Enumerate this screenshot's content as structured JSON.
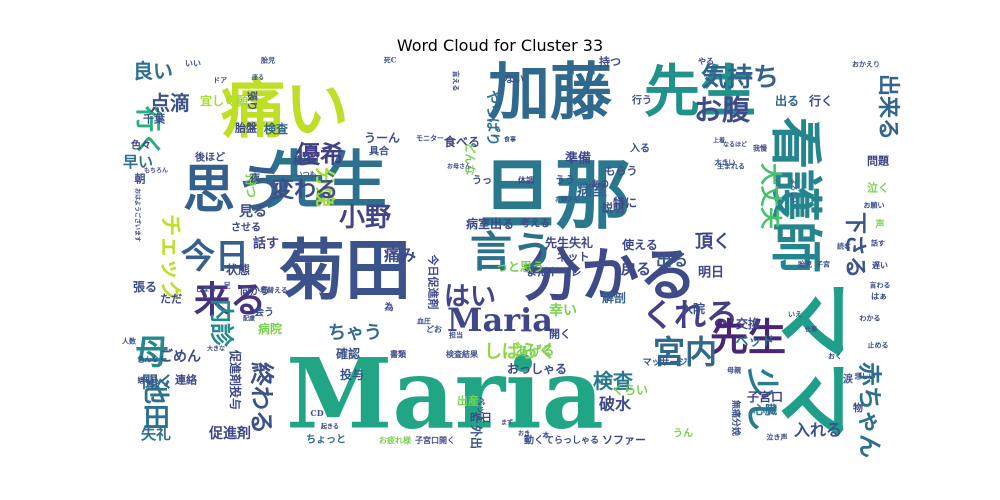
{
  "chart_data": {
    "type": "wordcloud",
    "title": "Word Cloud for Cluster 33",
    "words": [
      {
        "text": "Maria",
        "weight": 1.0,
        "color": "#21a685"
      },
      {
        "text": "ママ",
        "weight": 0.93,
        "color": "#1f9e89"
      },
      {
        "text": "旦那",
        "weight": 0.8,
        "color": "#2a788e"
      },
      {
        "text": "菊田",
        "weight": 0.75,
        "color": "#3b528b"
      },
      {
        "text": "先生",
        "weight": 0.72,
        "color": "#2c728e"
      },
      {
        "text": "加藤",
        "weight": 0.65,
        "color": "#30698e"
      },
      {
        "text": "先生",
        "weight": 0.62,
        "color": "#21918c"
      },
      {
        "text": "痛い",
        "weight": 0.6,
        "color": "#bddf26"
      },
      {
        "text": "分かる",
        "weight": 0.58,
        "color": "#3e4a89"
      },
      {
        "text": "思う",
        "weight": 0.5,
        "color": "#35608d"
      },
      {
        "text": "看護師",
        "weight": 0.48,
        "color": "#25858e"
      },
      {
        "text": "言う",
        "weight": 0.4,
        "color": "#2d708e"
      },
      {
        "text": "くれる",
        "weight": 0.32,
        "color": "#433e85"
      },
      {
        "text": "Maria",
        "weight": 0.3,
        "color": "#3f4788"
      },
      {
        "text": "先生",
        "weight": 0.3,
        "color": "#482576"
      },
      {
        "text": "宮内",
        "weight": 0.28,
        "color": "#31688e"
      },
      {
        "text": "来る",
        "weight": 0.28,
        "color": "#46327e"
      },
      {
        "text": "今日",
        "weight": 0.26,
        "color": "#35608d"
      },
      {
        "text": "少し",
        "weight": 0.26,
        "color": "#287c8e"
      },
      {
        "text": "気持ち",
        "weight": 0.22,
        "color": "#33638d"
      },
      {
        "text": "お腹",
        "weight": 0.22,
        "color": "#3d4d8a"
      },
      {
        "text": "分娩",
        "weight": 0.22,
        "color": "#a8db34"
      },
      {
        "text": "優希",
        "weight": 0.2,
        "color": "#424086"
      },
      {
        "text": "変わる",
        "weight": 0.2,
        "color": "#3e4c8a"
      },
      {
        "text": "母",
        "weight": 0.26,
        "color": "#23898e"
      },
      {
        "text": "内診",
        "weight": 0.22,
        "color": "#23898e"
      },
      {
        "text": "終わる",
        "weight": 0.22,
        "color": "#3b518b"
      },
      {
        "text": "池田",
        "weight": 0.22,
        "color": "#2c728e"
      },
      {
        "text": "大丈夫",
        "weight": 0.2,
        "color": "#48c16e"
      },
      {
        "text": "赤ちゃん",
        "weight": 0.2,
        "color": "#2d708e"
      },
      {
        "text": "はい",
        "weight": 0.18,
        "color": "#404688"
      },
      {
        "text": "小野",
        "weight": 0.18,
        "color": "#414487"
      },
      {
        "text": "チェック",
        "weight": 0.2,
        "color": "#bddf26"
      },
      {
        "text": "検査",
        "weight": 0.18,
        "color": "#2a788e"
      },
      {
        "text": "下さる",
        "weight": 0.18,
        "color": "#3b528b"
      },
      {
        "text": "出来る",
        "weight": 0.16,
        "color": "#32658e"
      },
      {
        "text": "行く",
        "weight": 0.16,
        "color": "#29af7f"
      },
      {
        "text": "しばらく",
        "weight": 0.14,
        "color": "#8fd744"
      },
      {
        "text": "ちゃう",
        "weight": 0.14,
        "color": "#31688e"
      },
      {
        "text": "痛み",
        "weight": 0.13,
        "color": "#3e4989"
      },
      {
        "text": "良い",
        "weight": 0.13,
        "color": "#2e6f8e"
      },
      {
        "text": "点滴",
        "weight": 0.13,
        "color": "#3b528b"
      },
      {
        "text": "頂く",
        "weight": 0.13,
        "color": "#3f4788"
      },
      {
        "text": "戻る",
        "weight": 0.12,
        "color": "#3e4989"
      },
      {
        "text": "病室",
        "weight": 0.11,
        "color": "#355f8d"
      },
      {
        "text": "準備",
        "weight": 0.1,
        "color": "#404688"
      },
      {
        "text": "出る",
        "weight": 0.1,
        "color": "#38598c"
      },
      {
        "text": "見る",
        "weight": 0.1,
        "color": "#3c4f8a"
      },
      {
        "text": "話す",
        "weight": 0.1,
        "color": "#3f4889"
      },
      {
        "text": "聞く",
        "weight": 0.1,
        "color": "#33638d"
      },
      {
        "text": "ごめん",
        "weight": 0.09,
        "color": "#3e4c8a"
      },
      {
        "text": "早い",
        "weight": 0.09,
        "color": "#2d708e"
      },
      {
        "text": "あげる",
        "weight": 0.09,
        "color": "#7ad151"
      },
      {
        "text": "確認",
        "weight": 0.08,
        "color": "#3b528b"
      },
      {
        "text": "連絡",
        "weight": 0.08,
        "color": "#3e4989"
      },
      {
        "text": "失礼",
        "weight": 0.09,
        "color": "#2c728e"
      },
      {
        "text": "促進剤",
        "weight": 0.08,
        "color": "#3f4788"
      },
      {
        "text": "病院",
        "weight": 0.08,
        "color": "#7ad151"
      },
      {
        "text": "おっしゃる",
        "weight": 0.08,
        "color": "#3e4989"
      },
      {
        "text": "入れる",
        "weight": 0.09,
        "color": "#3b528b"
      },
      {
        "text": "破水",
        "weight": 0.09,
        "color": "#3e4989"
      },
      {
        "text": "くらい",
        "weight": 0.08,
        "color": "#7ad151"
      },
      {
        "text": "子宮口",
        "weight": 0.08,
        "color": "#414487"
      },
      {
        "text": "ベッド",
        "weight": 0.08,
        "color": "#2c728e"
      },
      {
        "text": "交換",
        "weight": 0.08,
        "color": "#3e4989"
      },
      {
        "text": "入院",
        "weight": 0.08,
        "color": "#3b528b"
      },
      {
        "text": "解剖",
        "weight": 0.08,
        "color": "#33638d"
      },
      {
        "text": "明日",
        "weight": 0.08,
        "color": "#3f4788"
      },
      {
        "text": "心臓",
        "weight": 0.07,
        "color": "#2c728e"
      },
      {
        "text": "ソファー",
        "weight": 0.06,
        "color": "#3e4989"
      },
      {
        "text": "ちょっと",
        "weight": 0.06,
        "color": "#31688e"
      },
      {
        "text": "状態",
        "weight": 0.07,
        "color": "#3e4989"
      },
      {
        "text": "具合",
        "weight": 0.07,
        "color": "#3b528b"
      },
      {
        "text": "食べる",
        "weight": 0.07,
        "color": "#404688"
      },
      {
        "text": "持つ",
        "weight": 0.07,
        "color": "#3e4989"
      },
      {
        "text": "出る",
        "weight": 0.07,
        "color": "#33638d"
      },
      {
        "text": "行く",
        "weight": 0.07,
        "color": "#3e4989"
      },
      {
        "text": "うーん",
        "weight": 0.07,
        "color": "#3b528b"
      },
      {
        "text": "胎盤",
        "weight": 0.06,
        "color": "#3e4989"
      },
      {
        "text": "検査",
        "weight": 0.06,
        "color": "#33638d"
      },
      {
        "text": "千葉",
        "weight": 0.06,
        "color": "#3b528b"
      },
      {
        "text": "宜しく願う",
        "weight": 0.06,
        "color": "#a8db34"
      },
      {
        "text": "後ほど",
        "weight": 0.06,
        "color": "#3e4989"
      },
      {
        "text": "色々",
        "weight": 0.05,
        "color": "#3f4788"
      },
      {
        "text": "使える",
        "weight": 0.07,
        "color": "#3e4989"
      },
      {
        "text": "説明",
        "weight": 0.06,
        "color": "#3b528b"
      },
      {
        "text": "問題",
        "weight": 0.06,
        "color": "#414487"
      },
      {
        "text": "泣く",
        "weight": 0.06,
        "color": "#7ad151"
      },
      {
        "text": "病室出る",
        "weight": 0.07,
        "color": "#3e4989"
      },
      {
        "text": "先生失礼",
        "weight": 0.07,
        "color": "#3e4989"
      },
      {
        "text": "トイレ",
        "weight": 0.06,
        "color": "#3b528b"
      },
      {
        "text": "ネット",
        "weight": 0.06,
        "color": "#3f4788"
      },
      {
        "text": "幸い",
        "weight": 0.06,
        "color": "#7ad151"
      },
      {
        "text": "開く",
        "weight": 0.06,
        "color": "#3e4989"
      },
      {
        "text": "もらう",
        "weight": 0.06,
        "color": "#3b528b"
      },
      {
        "text": "特に",
        "weight": 0.06,
        "color": "#3f4788"
      },
      {
        "text": "やっぱり",
        "weight": 0.07,
        "color": "#2c728e"
      },
      {
        "text": "まだ",
        "weight": 0.06,
        "color": "#3b528b"
      },
      {
        "text": "考える",
        "weight": 0.05,
        "color": "#3e4989"
      },
      {
        "text": "出産",
        "weight": 0.05,
        "color": "#7ad151"
      },
      {
        "text": "昨日",
        "weight": 0.05,
        "color": "#3e4989"
      },
      {
        "text": "外出",
        "weight": 0.05,
        "color": "#3b528b"
      },
      {
        "text": "張る",
        "weight": 0.06,
        "color": "#3e4989"
      },
      {
        "text": "ただ",
        "weight": 0.05,
        "color": "#3f4788"
      },
      {
        "text": "持つ",
        "weight": 0.06,
        "color": "#7ad151"
      },
      {
        "text": "お疲れ様",
        "weight": 0.04,
        "color": "#7ad151"
      },
      {
        "text": "子宮口開く",
        "weight": 0.04,
        "color": "#3e4989"
      },
      {
        "text": "動く",
        "weight": 0.04,
        "color": "#3b528b"
      },
      {
        "text": "てらっしゃる",
        "weight": 0.04,
        "color": "#3e4989"
      },
      {
        "text": "マッサージ",
        "weight": 0.04,
        "color": "#3b528b"
      },
      {
        "text": "夜",
        "weight": 0.05,
        "color": "#3e4989"
      },
      {
        "text": "朝",
        "weight": 0.05,
        "color": "#3b528b"
      },
      {
        "text": "させる",
        "weight": 0.05,
        "color": "#3f4788"
      },
      {
        "text": "うん",
        "weight": 0.05,
        "color": "#7ad151"
      },
      {
        "text": "物",
        "weight": 0.05,
        "color": "#3e4989"
      },
      {
        "text": "涙",
        "weight": 0.05,
        "color": "#3b528b"
      },
      {
        "text": "向かう",
        "weight": 0.04,
        "color": "#3e4989"
      },
      {
        "text": "ない",
        "weight": 0.05,
        "color": "#3b528b"
      },
      {
        "text": "どんな",
        "weight": 0.05,
        "color": "#7ad151"
      },
      {
        "text": "っと思う",
        "weight": 0.06,
        "color": "#7ad151"
      },
      {
        "text": "今日促進剤",
        "weight": 0.05,
        "color": "#3e4989"
      },
      {
        "text": "会う",
        "weight": 0.05,
        "color": "#3b528b"
      },
      {
        "text": "行う",
        "weight": 0.05,
        "color": "#3e4989"
      },
      {
        "text": "入る",
        "weight": 0.05,
        "color": "#3b528b"
      },
      {
        "text": "体調",
        "weight": 0.04,
        "color": "#3e4989"
      },
      {
        "text": "無痛分娩",
        "weight": 0.04,
        "color": "#3b528b"
      },
      {
        "text": "促進剤投与",
        "weight": 0.05,
        "color": "#3e4989"
      },
      {
        "text": "投与",
        "weight": 0.05,
        "color": "#3b528b"
      },
      {
        "text": "書類",
        "weight": 0.04,
        "color": "#3e4989"
      },
      {
        "text": "検査結果",
        "weight": 0.04,
        "color": "#3b528b"
      },
      {
        "text": "横",
        "weight": 0.05,
        "color": "#3e4989"
      },
      {
        "text": "いつも",
        "weight": 0.04,
        "color": "#3b528b"
      },
      {
        "text": "モニター",
        "weight": 0.04,
        "color": "#3e4989"
      },
      {
        "text": "おかえり",
        "weight": 0.04,
        "color": "#3b528b"
      },
      {
        "text": "やる",
        "weight": 0.04,
        "color": "#3e4989"
      },
      {
        "text": "大きい",
        "weight": 0.04,
        "color": "#3b528b"
      },
      {
        "text": "我慢",
        "weight": 0.04,
        "color": "#3e4989"
      },
      {
        "text": "よろしい",
        "weight": 0.04,
        "color": "#3b528b"
      },
      {
        "text": "はぁ",
        "weight": 0.04,
        "color": "#3e4989"
      },
      {
        "text": "お願い",
        "weight": 0.04,
        "color": "#3b528b"
      },
      {
        "text": "わかる",
        "weight": 0.04,
        "color": "#3e4989"
      },
      {
        "text": "仕事",
        "weight": 0.04,
        "color": "#3b528b"
      },
      {
        "text": "母親",
        "weight": 0.04,
        "color": "#3e4989"
      },
      {
        "text": "大きな",
        "weight": 0.04,
        "color": "#3b528b"
      },
      {
        "text": "嬉しい",
        "weight": 0.04,
        "color": "#3e4989"
      },
      {
        "text": "配慮",
        "weight": 0.04,
        "color": "#3b528b"
      },
      {
        "text": "起きる",
        "weight": 0.04,
        "color": "#3e4989"
      },
      {
        "text": "まず",
        "weight": 0.04,
        "color": "#3b528b"
      },
      {
        "text": "おき",
        "weight": 0.04,
        "color": "#3e4989"
      },
      {
        "text": "本",
        "weight": 0.04,
        "color": "#3b528b"
      },
      {
        "text": "泣き声",
        "weight": 0.04,
        "color": "#3e4989"
      },
      {
        "text": "CD",
        "weight": 0.04,
        "color": "#3b528b"
      },
      {
        "text": "おはようございます",
        "weight": 0.04,
        "color": "#3e4989"
      },
      {
        "text": "人数",
        "weight": 0.04,
        "color": "#3b528b"
      },
      {
        "text": "色んな",
        "weight": 0.04,
        "color": "#3e4989"
      },
      {
        "text": "しまう",
        "weight": 0.04,
        "color": "#3b528b"
      },
      {
        "text": "足",
        "weight": 0.04,
        "color": "#3e4989"
      },
      {
        "text": "着替える",
        "weight": 0.04,
        "color": "#3b528b"
      },
      {
        "text": "もちろん",
        "weight": 0.04,
        "color": "#3e4989"
      },
      {
        "text": "座る",
        "weight": 0.04,
        "color": "#3b528b"
      },
      {
        "text": "ドア",
        "weight": 0.04,
        "color": "#3e4989"
      },
      {
        "text": "いい",
        "weight": 0.04,
        "color": "#3b528b"
      },
      {
        "text": "胎児",
        "weight": 0.04,
        "color": "#3e4989"
      },
      {
        "text": "死C",
        "weight": 0.04,
        "color": "#3b528b"
      },
      {
        "text": "言える",
        "weight": 0.04,
        "color": "#3e4989"
      },
      {
        "text": "生まれる",
        "weight": 0.04,
        "color": "#3b528b"
      },
      {
        "text": "お母さん",
        "weight": 0.04,
        "color": "#3e4989"
      },
      {
        "text": "ベッド",
        "weight": 0.04,
        "color": "#3b528b"
      },
      {
        "text": "張り",
        "weight": 0.04,
        "color": "#3e4989"
      },
      {
        "text": "どお",
        "weight": 0.04,
        "color": "#3b528b"
      },
      {
        "text": "為",
        "weight": 0.04,
        "color": "#3e4989"
      },
      {
        "text": "血圧",
        "weight": 0.04,
        "color": "#3b528b"
      },
      {
        "text": "担当",
        "weight": 0.04,
        "color": "#3e4989"
      },
      {
        "text": "読む",
        "weight": 0.04,
        "color": "#3b528b"
      },
      {
        "text": "おく",
        "weight": 0.04,
        "color": "#3e4989"
      },
      {
        "text": "悲しい",
        "weight": 0.04,
        "color": "#3b528b"
      },
      {
        "text": "あの",
        "weight": 0.04,
        "color": "#3e4989"
      },
      {
        "text": "子宮",
        "weight": 0.04,
        "color": "#3b528b"
      },
      {
        "text": "胎児",
        "weight": 0.04,
        "color": "#3e4989"
      },
      {
        "text": "いえ",
        "weight": 0.04,
        "color": "#3b528b"
      },
      {
        "text": "話す",
        "weight": 0.04,
        "color": "#3e4989"
      },
      {
        "text": "止める",
        "weight": 0.04,
        "color": "#3b528b"
      },
      {
        "text": "うっ",
        "weight": 0.05,
        "color": "#3e4989"
      },
      {
        "text": "うう",
        "weight": 0.04,
        "color": "#3b528b"
      },
      {
        "text": "なるほど",
        "weight": 0.04,
        "color": "#3e4989"
      },
      {
        "text": "上着",
        "weight": 0.04,
        "color": "#3b528b"
      },
      {
        "text": "食事",
        "weight": 0.04,
        "color": "#3e4989"
      },
      {
        "text": "お姉さん",
        "weight": 0.04,
        "color": "#3b528b"
      },
      {
        "text": "声",
        "weight": 0.04,
        "color": "#7ad151"
      },
      {
        "text": "遅い",
        "weight": 0.04,
        "color": "#3e4989"
      },
      {
        "text": "言わる",
        "weight": 0.04,
        "color": "#3b528b"
      }
    ]
  }
}
